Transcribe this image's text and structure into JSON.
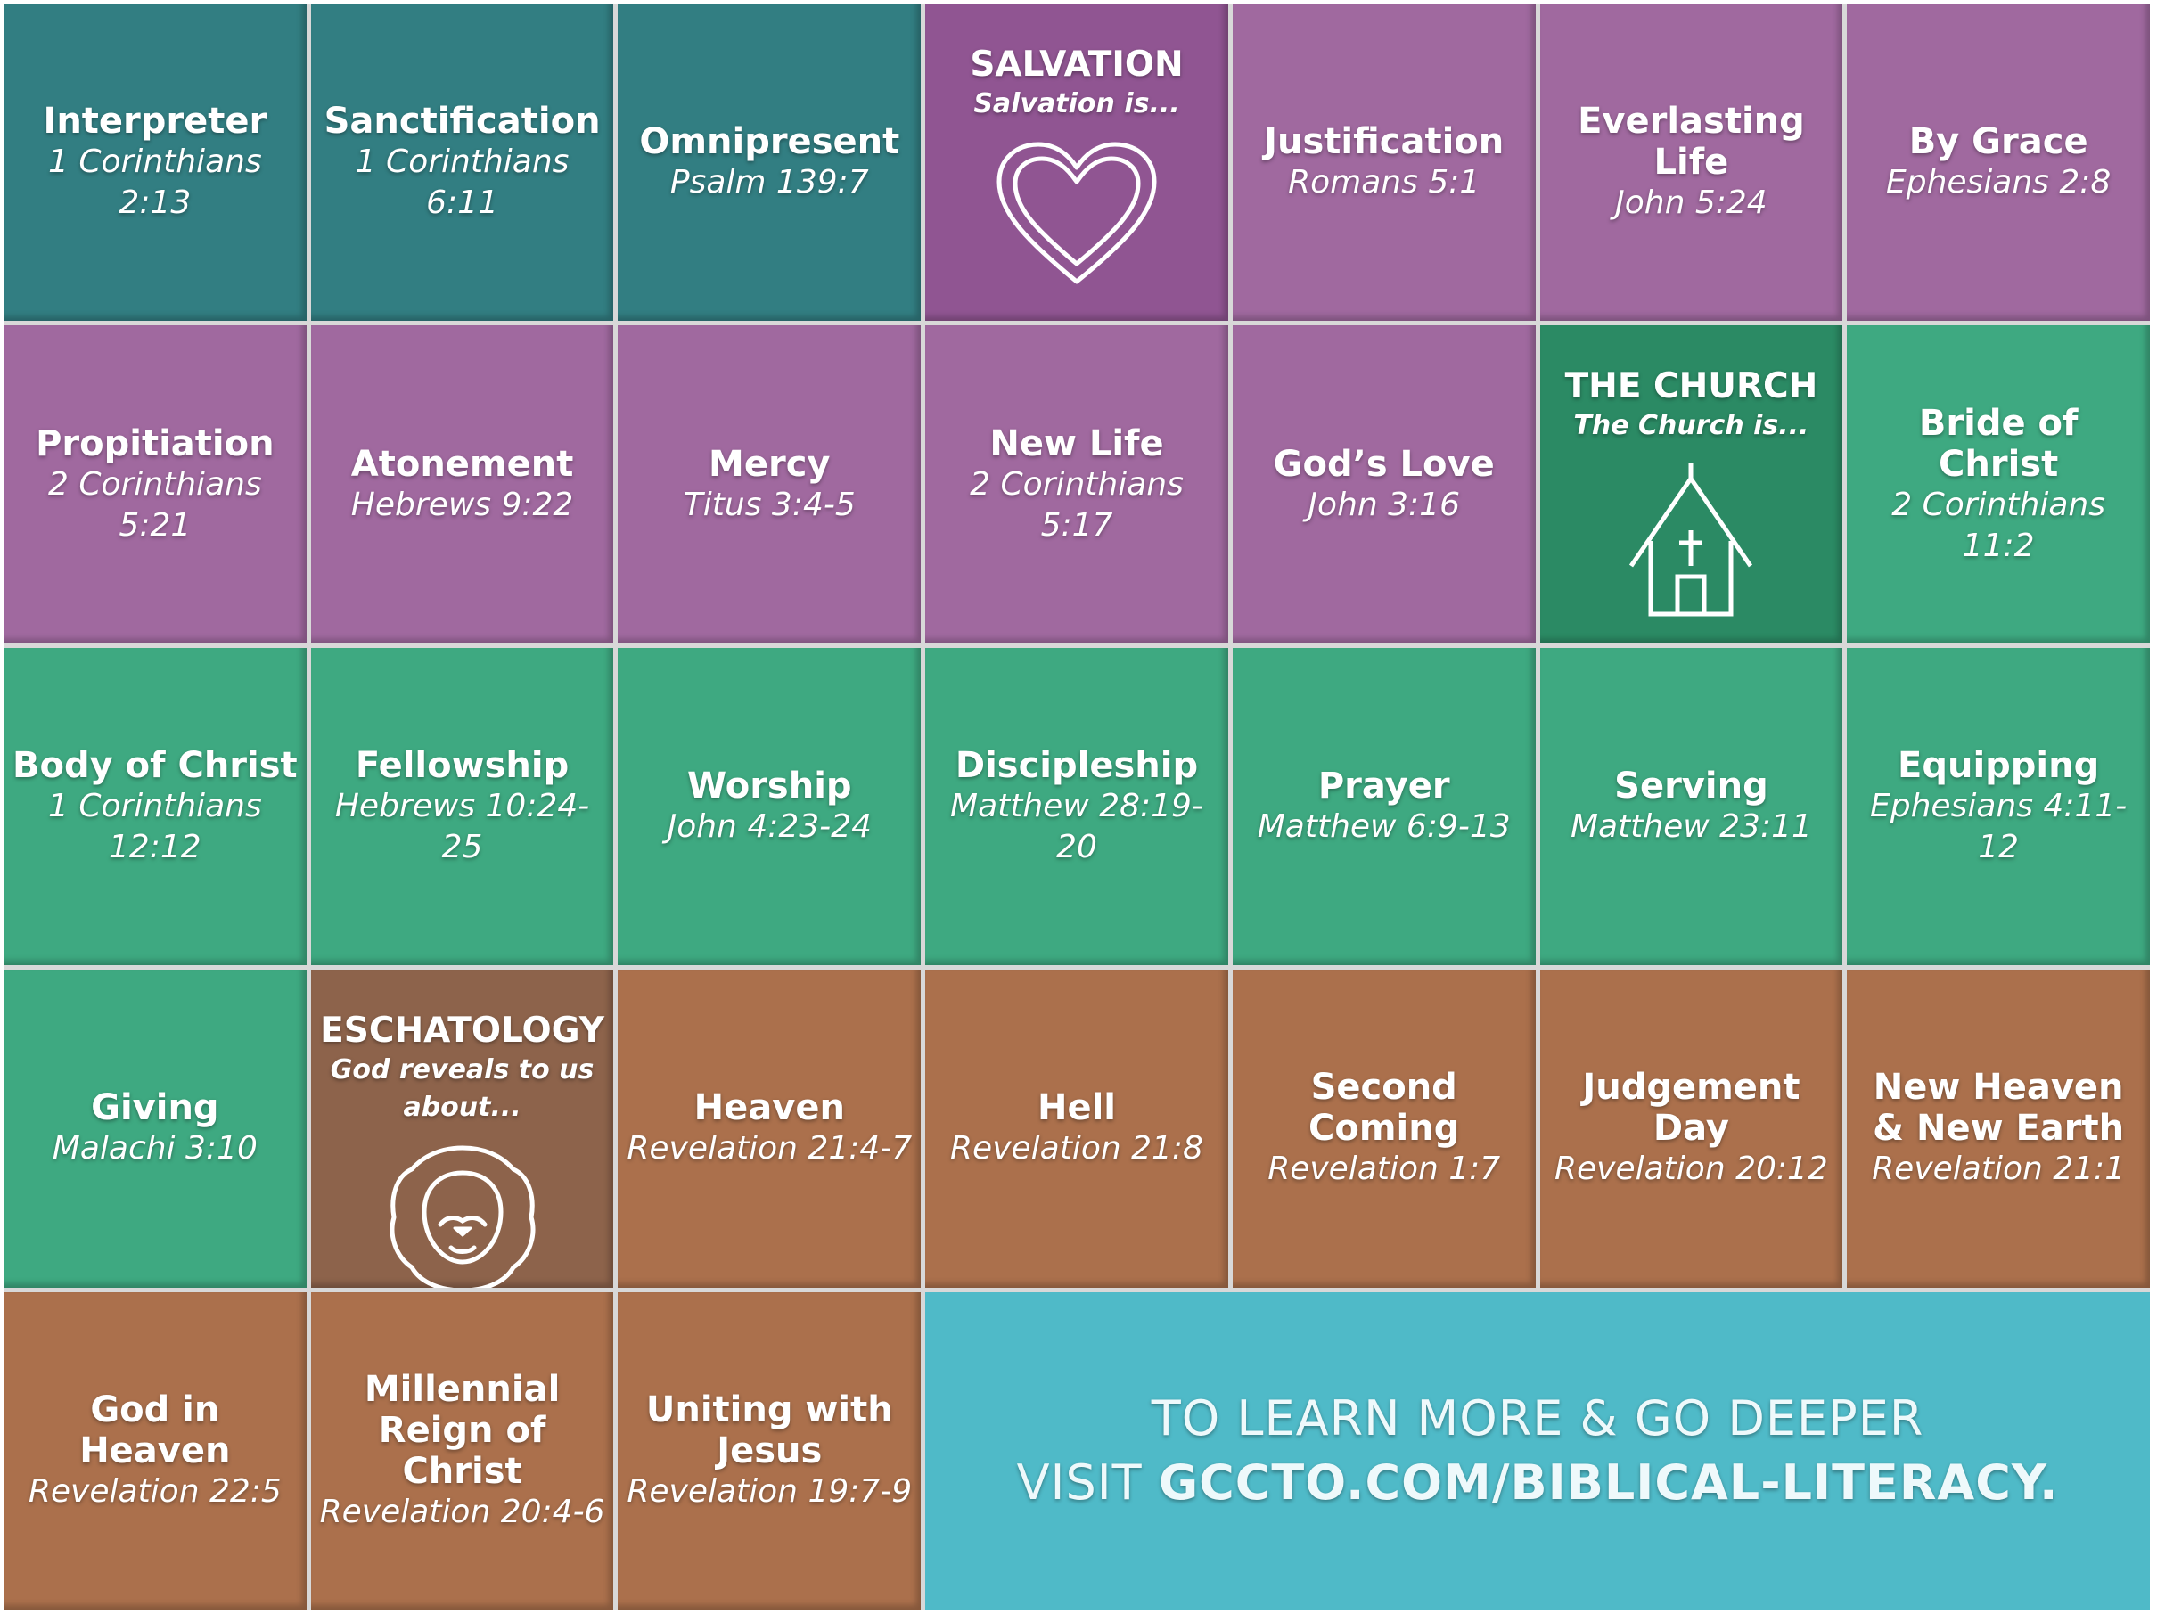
{
  "grid": {
    "row1": [
      {
        "title": "Interpreter",
        "ref": "1 Corinthians 2:13"
      },
      {
        "title": "Sanctification",
        "ref": "1 Corinthians 6:11"
      },
      {
        "title": "Omnipresent",
        "ref": "Psalm 139:7"
      },
      {
        "header_title": "SALVATION",
        "header_sub": "Salvation is..."
      },
      {
        "title": "Justification",
        "ref": "Romans 5:1"
      },
      {
        "title": "Everlasting Life",
        "ref": "John 5:24"
      },
      {
        "title": "By Grace",
        "ref": "Ephesians 2:8"
      }
    ],
    "row2": [
      {
        "title": "Propitiation",
        "ref": "2 Corinthians 5:21"
      },
      {
        "title": "Atonement",
        "ref": "Hebrews 9:22"
      },
      {
        "title": "Mercy",
        "ref": "Titus 3:4-5"
      },
      {
        "title": "New Life",
        "ref": "2 Corinthians 5:17"
      },
      {
        "title": "God’s Love",
        "ref": "John 3:16"
      },
      {
        "header_title": "THE CHURCH",
        "header_sub": "The Church is..."
      },
      {
        "title": "Bride of Christ",
        "ref": "2 Corinthians 11:2"
      }
    ],
    "row3": [
      {
        "title": "Body of Christ",
        "ref": "1 Corinthians 12:12"
      },
      {
        "title": "Fellowship",
        "ref": "Hebrews 10:24-25"
      },
      {
        "title": "Worship",
        "ref": "John 4:23-24"
      },
      {
        "title": "Discipleship",
        "ref": "Matthew 28:19-20"
      },
      {
        "title": "Prayer",
        "ref": "Matthew 6:9-13"
      },
      {
        "title": "Serving",
        "ref": "Matthew 23:11"
      },
      {
        "title": "Equipping",
        "ref": "Ephesians 4:11-12"
      }
    ],
    "row4": [
      {
        "title": "Giving",
        "ref": "Malachi 3:10"
      },
      {
        "header_title": "ESCHATOLOGY",
        "header_sub": "God reveals to us about..."
      },
      {
        "title": "Heaven",
        "ref": "Revelation 21:4-7"
      },
      {
        "title": "Hell",
        "ref": "Revelation 21:8"
      },
      {
        "title": "Second Coming",
        "ref": "Revelation 1:7"
      },
      {
        "title": "Judgement Day",
        "ref": "Revelation 20:12"
      },
      {
        "title_line1": "New Heaven",
        "title_line2": "& New Earth",
        "ref": "Revelation 21:1"
      }
    ],
    "row5": [
      {
        "title": "God in Heaven",
        "ref": "Revelation 22:5"
      },
      {
        "title_line1": "Millennial",
        "title_line2": "Reign of Christ",
        "ref": "Revelation 20:4-6"
      },
      {
        "title_line1": "Uniting with",
        "title_line2": "Jesus",
        "ref": "Revelation 19:7-9"
      }
    ]
  },
  "cta": {
    "line1": "TO LEARN MORE & GO DEEPER",
    "line2_prefix": "VISIT ",
    "line2_link": "GCCTO.COM/BIBLICAL-LITERACY."
  },
  "colors": {
    "teal": "#327e82",
    "purple": "#a0699f",
    "purple_header": "#905592",
    "green": "#3ea981",
    "green_header": "#2b8a64",
    "brown": "#ab704c",
    "brown_header": "#8d634b",
    "cta": "#4fbac8"
  },
  "icons": {
    "salvation": "heart-icon",
    "church": "church-icon",
    "eschatology": "lion-icon"
  }
}
